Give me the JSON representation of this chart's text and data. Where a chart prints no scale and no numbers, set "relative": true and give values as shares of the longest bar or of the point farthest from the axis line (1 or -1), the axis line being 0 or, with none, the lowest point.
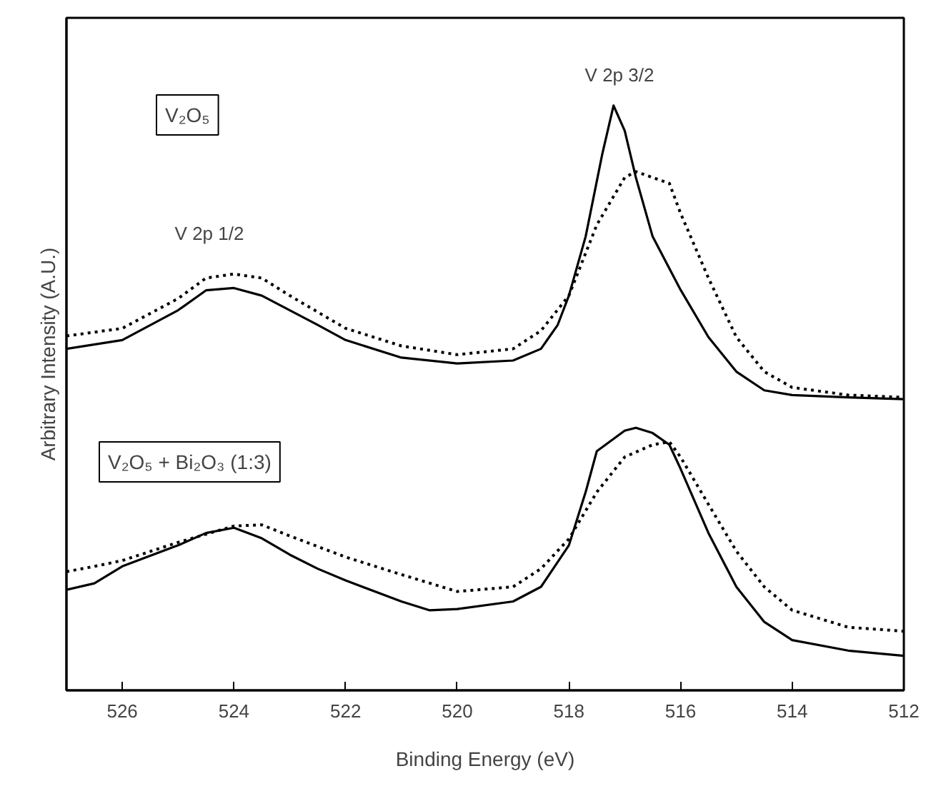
{
  "chart_data": {
    "type": "line",
    "relative": true,
    "xlabel": "Binding Energy (eV)",
    "ylabel": "Arbitrary Intensity (A.U.)",
    "xlim": [
      527,
      512
    ],
    "xticks": [
      526,
      524,
      522,
      520,
      518,
      516,
      514,
      512
    ],
    "grid": false,
    "annotations": [
      "V 2p 3/2",
      "V 2p 1/2",
      "V₂O₅",
      "V₂O₅ + Bi₂O₃ (1:3)"
    ],
    "series": [
      {
        "color": "#000000",
        "line_style": "solid",
        "x": [
          527,
          526,
          525,
          524.5,
          524,
          523.5,
          523,
          522.5,
          522,
          521,
          520,
          519,
          518.5,
          518.2,
          518,
          517.7,
          517.4,
          517.2,
          517,
          516.8,
          516.5,
          516,
          515.5,
          515,
          514.5,
          514,
          513,
          512
        ],
        "values": [
          0.584,
          0.599,
          0.65,
          0.684,
          0.688,
          0.675,
          0.65,
          0.625,
          0.599,
          0.569,
          0.559,
          0.564,
          0.584,
          0.625,
          0.675,
          0.776,
          0.918,
          1.0,
          0.957,
          0.877,
          0.776,
          0.685,
          0.604,
          0.545,
          0.513,
          0.505,
          0.501,
          0.498
        ]
      },
      {
        "color": "#000000",
        "line_style": "dotted",
        "x": [
          527,
          526,
          525,
          524.5,
          524,
          523.5,
          523,
          522,
          521,
          520,
          519,
          518.5,
          518,
          517.5,
          517,
          516.8,
          516.5,
          516.2,
          516,
          515.5,
          515,
          514.5,
          514,
          513,
          512
        ],
        "values": [
          0.606,
          0.619,
          0.67,
          0.705,
          0.712,
          0.705,
          0.675,
          0.619,
          0.589,
          0.574,
          0.584,
          0.615,
          0.675,
          0.796,
          0.877,
          0.887,
          0.877,
          0.867,
          0.816,
          0.705,
          0.604,
          0.545,
          0.518,
          0.505,
          0.501
        ]
      },
      {
        "color": "#000000",
        "line_style": "solid",
        "x": [
          527,
          526.5,
          526,
          525,
          524.5,
          524,
          523.5,
          523,
          522.5,
          522,
          521,
          520.5,
          520,
          519,
          518.5,
          518,
          517.7,
          517.5,
          517,
          516.8,
          516.5,
          516.2,
          516,
          515.5,
          515,
          514.5,
          514,
          513,
          512
        ],
        "values": [
          0.172,
          0.183,
          0.212,
          0.248,
          0.269,
          0.278,
          0.26,
          0.232,
          0.208,
          0.188,
          0.152,
          0.137,
          0.139,
          0.152,
          0.177,
          0.248,
          0.339,
          0.409,
          0.444,
          0.449,
          0.44,
          0.42,
          0.379,
          0.269,
          0.177,
          0.117,
          0.086,
          0.068,
          0.059
        ]
      },
      {
        "color": "#000000",
        "line_style": "dotted",
        "x": [
          527,
          526.5,
          526,
          525,
          524,
          523.5,
          523,
          522,
          521,
          520,
          519,
          518.5,
          518,
          517.5,
          517,
          516.5,
          516.2,
          516,
          515.5,
          515,
          514.5,
          514,
          513,
          512
        ],
        "values": [
          0.203,
          0.212,
          0.222,
          0.253,
          0.281,
          0.283,
          0.264,
          0.228,
          0.198,
          0.169,
          0.177,
          0.208,
          0.259,
          0.339,
          0.399,
          0.42,
          0.425,
          0.399,
          0.318,
          0.238,
          0.177,
          0.137,
          0.108,
          0.101
        ]
      }
    ]
  }
}
